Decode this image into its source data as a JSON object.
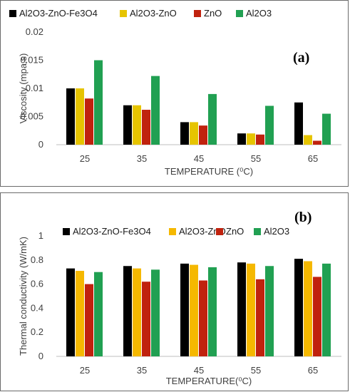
{
  "chart_data": [
    {
      "type": "bar",
      "panel_label": "(a)",
      "xlabel": "TEMPERATURE (⁰C)",
      "ylabel": "Viscosity (mpa.s)",
      "categories": [
        "25",
        "35",
        "45",
        "55",
        "65"
      ],
      "ylim": [
        0,
        0.02
      ],
      "yticks": [
        "0",
        "0.005",
        "0.01",
        "0.015",
        "0.02"
      ],
      "grid": false,
      "legend_position": "top",
      "series": [
        {
          "name": "Al2O3-ZnO-Fe3O4",
          "color": "#000000",
          "values": [
            0.01,
            0.007,
            0.004,
            0.002,
            0.0075
          ]
        },
        {
          "name": "Al2O3-ZnO",
          "color": "#e6c400",
          "values": [
            0.01,
            0.007,
            0.004,
            0.002,
            0.0017
          ]
        },
        {
          "name": "ZnO",
          "color": "#c0220e",
          "values": [
            0.0082,
            0.0062,
            0.0034,
            0.0018,
            0.0007
          ]
        },
        {
          "name": "Al2O3",
          "color": "#21a052",
          "values": [
            0.015,
            0.0122,
            0.009,
            0.0069,
            0.0055
          ]
        }
      ]
    },
    {
      "type": "bar",
      "panel_label": "(b)",
      "xlabel": "TEMPERATURE(⁰C)",
      "ylabel": "Thermal conductivity (W/mK)",
      "categories": [
        "25",
        "35",
        "45",
        "55",
        "65"
      ],
      "ylim": [
        0,
        1
      ],
      "yticks": [
        "0",
        "0.2",
        "0.4",
        "0.6",
        "0.8",
        "1"
      ],
      "grid": false,
      "legend_position": "top-right",
      "series": [
        {
          "name": "Al2O3-ZnO-Fe3O4",
          "color": "#000000",
          "values": [
            0.73,
            0.75,
            0.77,
            0.78,
            0.81
          ]
        },
        {
          "name": "Al2O3-ZnO",
          "color": "#f5b800",
          "values": [
            0.71,
            0.73,
            0.76,
            0.77,
            0.79
          ]
        },
        {
          "name": "ZnO",
          "color": "#c0220e",
          "values": [
            0.6,
            0.62,
            0.63,
            0.64,
            0.66
          ]
        },
        {
          "name": "Al2O3",
          "color": "#21a052",
          "values": [
            0.7,
            0.72,
            0.74,
            0.75,
            0.77
          ]
        }
      ]
    }
  ]
}
